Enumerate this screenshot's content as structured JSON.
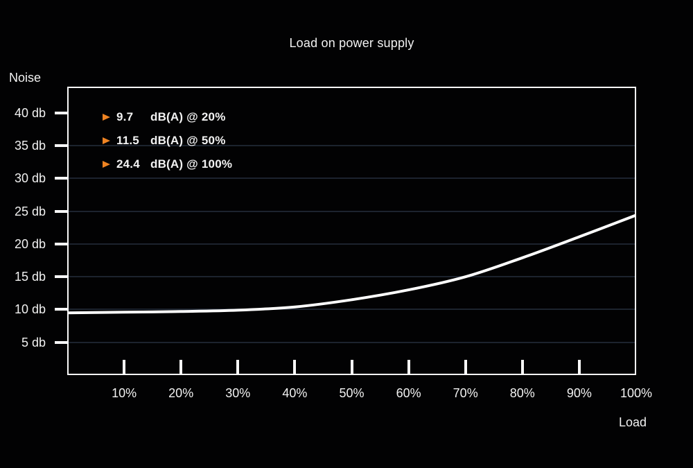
{
  "colors": {
    "background": "#020203",
    "text": "#f2f2f2",
    "accent_orange": "#ee8322",
    "grid": "#1c232e",
    "curve": "#ffffff",
    "plot_border": "#fafafa"
  },
  "chart_data": {
    "type": "line",
    "title": "Load on power supply",
    "xlabel": "Load",
    "ylabel": "Noise",
    "xlim": [
      0,
      100
    ],
    "ylim": [
      0,
      44
    ],
    "grid": true,
    "grid_levels": [
      35,
      30,
      25,
      20,
      15,
      10,
      5
    ],
    "y_ticks": [
      {
        "v": 40,
        "label": "40 db"
      },
      {
        "v": 35,
        "label": "35 db"
      },
      {
        "v": 30,
        "label": "30 db"
      },
      {
        "v": 25,
        "label": "25 db"
      },
      {
        "v": 20,
        "label": "20 db"
      },
      {
        "v": 15,
        "label": "15 db"
      },
      {
        "v": 10,
        "label": "10 db"
      },
      {
        "v": 5,
        "label": "5 db"
      }
    ],
    "x_ticks": [
      {
        "p": 10,
        "label": "10%",
        "mark": true
      },
      {
        "p": 20,
        "label": "20%",
        "mark": true
      },
      {
        "p": 30,
        "label": "30%",
        "mark": true
      },
      {
        "p": 40,
        "label": "40%",
        "mark": true
      },
      {
        "p": 50,
        "label": "50%",
        "mark": true
      },
      {
        "p": 60,
        "label": "60%",
        "mark": true
      },
      {
        "p": 70,
        "label": "70%",
        "mark": true
      },
      {
        "p": 80,
        "label": "80%",
        "mark": true
      },
      {
        "p": 90,
        "label": "90%",
        "mark": true
      },
      {
        "p": 100,
        "label": "100%",
        "mark": false
      }
    ],
    "series": [
      {
        "name": "noise-curve",
        "x": [
          0,
          10,
          20,
          30,
          40,
          50,
          60,
          70,
          80,
          90,
          100
        ],
        "values": [
          9.5,
          9.6,
          9.7,
          9.9,
          10.4,
          11.5,
          13.0,
          15.0,
          17.9,
          21.1,
          24.4
        ]
      }
    ],
    "legend_position": "top-left",
    "annotations": [
      {
        "value": "9.7",
        "label": "dB(A) @ 20%"
      },
      {
        "value": "11.5",
        "label": "dB(A) @ 50%"
      },
      {
        "value": "24.4",
        "label": "dB(A) @ 100%"
      }
    ]
  }
}
